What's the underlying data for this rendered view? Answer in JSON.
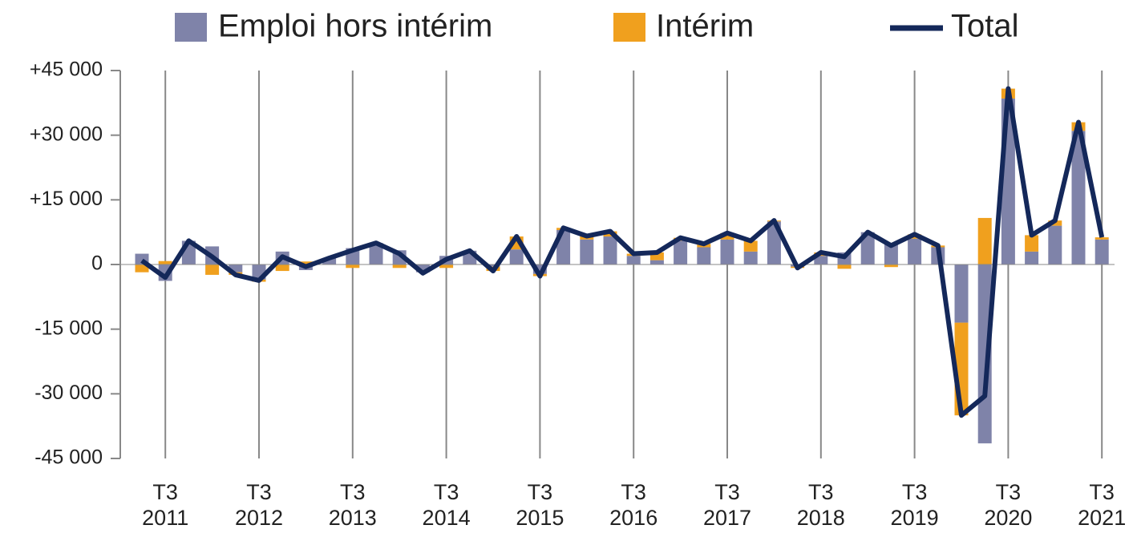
{
  "chart_data": {
    "type": "bar",
    "categories": [
      null,
      "T3 2011",
      null,
      null,
      null,
      "T3 2012",
      null,
      null,
      null,
      "T3 2013",
      null,
      null,
      null,
      "T3 2014",
      null,
      null,
      null,
      "T3 2015",
      null,
      null,
      null,
      "T3 2016",
      null,
      null,
      null,
      "T3 2017",
      null,
      null,
      null,
      "T3 2018",
      null,
      null,
      null,
      "T3 2019",
      null,
      null,
      null,
      "T3 2020",
      null,
      null,
      null,
      "T3 2021"
    ],
    "series": [
      {
        "name": "Emploi hors intérim",
        "type": "bar",
        "color": "#7f83a9",
        "values": [
          2500,
          -3800,
          5500,
          4200,
          -1800,
          -3500,
          3000,
          -1300,
          1500,
          3800,
          5000,
          3300,
          -1800,
          2000,
          3200,
          -500,
          3500,
          -2200,
          8000,
          5800,
          6500,
          2000,
          1000,
          5500,
          4000,
          5800,
          3000,
          10000,
          -500,
          2000,
          2800,
          7500,
          5000,
          6000,
          4000,
          -13500,
          -41500,
          38500,
          3000,
          9000,
          31000,
          5800
        ]
      },
      {
        "name": "Intérim",
        "type": "bar",
        "color": "#f0a01e",
        "values": [
          -1800,
          800,
          0,
          -2400,
          -600,
          -500,
          -1500,
          700,
          0,
          -800,
          0,
          -800,
          0,
          -800,
          0,
          -1000,
          3000,
          -500,
          500,
          800,
          1200,
          500,
          1800,
          700,
          800,
          1500,
          2500,
          200,
          -300,
          800,
          -1000,
          0,
          -600,
          1000,
          400,
          -21500,
          10800,
          2300,
          3800,
          1200,
          2000,
          500
        ]
      },
      {
        "name": "Total",
        "type": "line",
        "color": "#14285a",
        "values": [
          900,
          -3000,
          5500,
          1800,
          -2400,
          -3700,
          1800,
          -500,
          1500,
          3300,
          5000,
          2500,
          -2000,
          1200,
          3200,
          -1500,
          6500,
          -2700,
          8500,
          6600,
          7700,
          2500,
          2800,
          6200,
          4800,
          7300,
          5500,
          10200,
          -800,
          2800,
          1800,
          7500,
          4400,
          7000,
          4400,
          -35000,
          -30500,
          40800,
          6800,
          10200,
          33000,
          6300
        ]
      }
    ],
    "ylim": [
      -45000,
      45000
    ],
    "yticks": [
      {
        "value": 45000,
        "label": "+45 000"
      },
      {
        "value": 30000,
        "label": "+30 000"
      },
      {
        "value": 15000,
        "label": "+15 000"
      },
      0,
      {
        "value": -15000,
        "label": "-15 000"
      },
      {
        "value": -30000,
        "label": "-30 000"
      },
      {
        "value": -45000,
        "label": "-45 000"
      }
    ]
  }
}
